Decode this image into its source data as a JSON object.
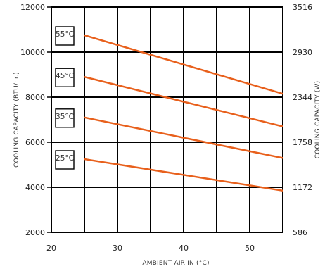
{
  "chart_data": {
    "type": "line",
    "xlabel": "AMBIENT AIR IN (°C)",
    "ylabel_left": "COOLING CAPACITY (BTU/hr.)",
    "ylabel_right": "COOLING CAPACITY (W)",
    "xlim": [
      20,
      55
    ],
    "ylim": [
      2000,
      12000
    ],
    "x_ticks": [
      "20",
      "30",
      "40",
      "50"
    ],
    "y_ticks_left": [
      "2000",
      "4000",
      "6000",
      "8000",
      "10000",
      "12000"
    ],
    "y_ticks_right": [
      "586",
      "1172",
      "1758",
      "2344",
      "2930",
      "3516"
    ],
    "x_grid": [
      25,
      30,
      35,
      40,
      45,
      50,
      55
    ],
    "grid": true,
    "line_color": "#e8601c",
    "series": [
      {
        "name": "55°C",
        "x": [
          25,
          55
        ],
        "y": [
          10750,
          8150
        ]
      },
      {
        "name": "45°C",
        "x": [
          25,
          55
        ],
        "y": [
          8900,
          6700
        ]
      },
      {
        "name": "35°C",
        "x": [
          25,
          55
        ],
        "y": [
          7100,
          5300
        ]
      },
      {
        "name": "25°C",
        "x": [
          25,
          55
        ],
        "y": [
          5250,
          3850
        ]
      }
    ]
  }
}
